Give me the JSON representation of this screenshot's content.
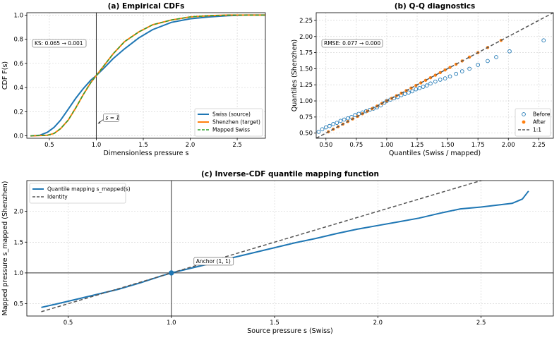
{
  "chart_data": [
    {
      "type": "line",
      "title": "(a) Empirical CDFs",
      "xlabel": "Dimensionless pressure s",
      "ylabel": "CDF F(s)",
      "xlim": [
        0.26,
        2.8
      ],
      "ylim": [
        -0.02,
        1.02
      ],
      "xticks": [
        "0.5",
        "1.0",
        "1.5",
        "2.0",
        "2.5"
      ],
      "yticks": [
        "0.0",
        "0.2",
        "0.4",
        "0.6",
        "0.8",
        "1.0"
      ],
      "grid": true,
      "legend_position": "lower-right",
      "series": [
        {
          "name": "Swiss (source)",
          "color": "#1f77b4",
          "style": "solid",
          "x": [
            0.3,
            0.4,
            0.48,
            0.55,
            0.62,
            0.7,
            0.78,
            0.86,
            0.94,
            1.0,
            1.08,
            1.18,
            1.3,
            1.45,
            1.6,
            1.8,
            2.0,
            2.2,
            2.4,
            2.6,
            2.8
          ],
          "y": [
            0.0,
            0.005,
            0.03,
            0.07,
            0.13,
            0.22,
            0.31,
            0.39,
            0.46,
            0.5,
            0.56,
            0.64,
            0.72,
            0.81,
            0.88,
            0.94,
            0.97,
            0.985,
            0.995,
            1.0,
            1.0
          ]
        },
        {
          "name": "Shenzhen (target)",
          "color": "#ff7f0e",
          "style": "solid",
          "x": [
            0.3,
            0.48,
            0.55,
            0.62,
            0.7,
            0.78,
            0.86,
            0.94,
            1.0,
            1.08,
            1.18,
            1.3,
            1.45,
            1.6,
            1.8,
            2.0,
            2.2,
            2.4,
            2.8
          ],
          "y": [
            0.0,
            0.005,
            0.02,
            0.06,
            0.13,
            0.23,
            0.34,
            0.44,
            0.5,
            0.58,
            0.68,
            0.78,
            0.86,
            0.92,
            0.96,
            0.985,
            0.995,
            1.0,
            1.0
          ]
        },
        {
          "name": "Mapped Swiss",
          "color": "#2ca02c",
          "style": "dashed",
          "x": [
            0.3,
            0.48,
            0.55,
            0.62,
            0.7,
            0.78,
            0.86,
            0.94,
            1.0,
            1.08,
            1.18,
            1.3,
            1.45,
            1.6,
            1.8,
            2.0,
            2.2,
            2.4,
            2.8
          ],
          "y": [
            0.0,
            0.005,
            0.02,
            0.06,
            0.13,
            0.23,
            0.34,
            0.44,
            0.5,
            0.58,
            0.68,
            0.78,
            0.86,
            0.92,
            0.96,
            0.985,
            0.995,
            1.0,
            1.0
          ]
        }
      ],
      "vline": 1.0,
      "annotations": [
        {
          "text": "KS: 0.065 → 0.001",
          "boxed": true
        },
        {
          "text": "s = 1",
          "x": 1.0,
          "y": 0.1,
          "arrow": true,
          "boxed": true
        }
      ]
    },
    {
      "type": "scatter",
      "title": "(b) Q-Q diagnostics",
      "xlabel": "Quantiles (Swiss / mapped)",
      "ylabel": "Quantiles (Shenzhen)",
      "xlim": [
        0.42,
        2.37
      ],
      "ylim": [
        0.42,
        2.37
      ],
      "xticks": [
        "0.50",
        "0.75",
        "1.00",
        "1.25",
        "1.50",
        "1.75",
        "2.00",
        "2.25"
      ],
      "yticks": [
        "0.50",
        "0.75",
        "1.00",
        "1.25",
        "1.50",
        "1.75",
        "2.00",
        "2.25"
      ],
      "grid": true,
      "legend_position": "lower-right",
      "series": [
        {
          "name": "Before",
          "color": "#1f77b4",
          "marker": "open-circle",
          "x": [
            0.44,
            0.47,
            0.5,
            0.53,
            0.56,
            0.59,
            0.62,
            0.65,
            0.68,
            0.71,
            0.74,
            0.77,
            0.8,
            0.83,
            0.86,
            0.89,
            0.92,
            0.95,
            0.98,
            1.0,
            1.03,
            1.06,
            1.09,
            1.12,
            1.15,
            1.18,
            1.21,
            1.24,
            1.27,
            1.3,
            1.33,
            1.36,
            1.4,
            1.44,
            1.48,
            1.52,
            1.57,
            1.62,
            1.68,
            1.75,
            1.83,
            1.9,
            2.01,
            2.29
          ],
          "y": [
            0.52,
            0.56,
            0.59,
            0.61,
            0.64,
            0.66,
            0.69,
            0.71,
            0.73,
            0.75,
            0.78,
            0.8,
            0.82,
            0.84,
            0.86,
            0.88,
            0.9,
            0.93,
            0.97,
            1.0,
            1.02,
            1.04,
            1.06,
            1.09,
            1.11,
            1.13,
            1.15,
            1.18,
            1.2,
            1.22,
            1.24,
            1.27,
            1.3,
            1.33,
            1.35,
            1.38,
            1.42,
            1.46,
            1.5,
            1.56,
            1.62,
            1.68,
            1.77,
            1.94
          ]
        },
        {
          "name": "After",
          "color": "#ff7f0e",
          "marker": "filled-circle",
          "x": [
            0.52,
            0.56,
            0.6,
            0.64,
            0.68,
            0.72,
            0.76,
            0.8,
            0.84,
            0.88,
            0.92,
            0.96,
            1.0,
            1.04,
            1.08,
            1.12,
            1.16,
            1.2,
            1.24,
            1.28,
            1.32,
            1.36,
            1.4,
            1.44,
            1.48,
            1.52,
            1.57,
            1.62,
            1.68,
            1.75,
            1.83,
            1.94
          ],
          "y": [
            0.52,
            0.56,
            0.6,
            0.64,
            0.68,
            0.72,
            0.76,
            0.8,
            0.84,
            0.88,
            0.92,
            0.96,
            1.0,
            1.04,
            1.08,
            1.12,
            1.16,
            1.2,
            1.24,
            1.28,
            1.32,
            1.36,
            1.4,
            1.44,
            1.48,
            1.52,
            1.57,
            1.62,
            1.68,
            1.75,
            1.83,
            1.94
          ]
        },
        {
          "name": "1:1",
          "color": "#555555",
          "style": "dashed",
          "x": [
            0.42,
            2.37
          ],
          "y": [
            0.42,
            2.37
          ]
        }
      ],
      "annotations": [
        {
          "text": "RMSE: 0.077 → 0.000",
          "boxed": true
        }
      ]
    },
    {
      "type": "line",
      "title": "(c) Inverse-CDF quantile mapping function",
      "xlabel": "Source pressure s (Swiss)",
      "ylabel": "Mapped pressure s_mapped (Shenzhen)",
      "xlim": [
        0.3,
        2.85
      ],
      "ylim": [
        0.3,
        2.5
      ],
      "xticks": [
        "0.5",
        "1.0",
        "1.5",
        "2.0",
        "2.5"
      ],
      "yticks": [
        "0.5",
        "1.0",
        "1.5",
        "2.0"
      ],
      "grid": true,
      "legend_position": "upper-left",
      "series": [
        {
          "name": "Quantile mapping  s_mapped(s)",
          "color": "#1f77b4",
          "style": "solid",
          "x": [
            0.37,
            0.45,
            0.55,
            0.65,
            0.75,
            0.85,
            0.95,
            1.0,
            1.1,
            1.2,
            1.3,
            1.4,
            1.5,
            1.6,
            1.7,
            1.8,
            1.9,
            2.0,
            2.1,
            2.2,
            2.3,
            2.4,
            2.5,
            2.6,
            2.65,
            2.7,
            2.73
          ],
          "y": [
            0.44,
            0.5,
            0.58,
            0.66,
            0.74,
            0.84,
            0.95,
            1.0,
            1.08,
            1.16,
            1.25,
            1.33,
            1.41,
            1.49,
            1.56,
            1.64,
            1.71,
            1.77,
            1.83,
            1.89,
            1.97,
            2.04,
            2.07,
            2.11,
            2.13,
            2.2,
            2.33
          ]
        },
        {
          "name": "Identity",
          "color": "#555555",
          "style": "dashed",
          "x": [
            0.37,
            2.73
          ],
          "y": [
            0.37,
            2.73
          ]
        }
      ],
      "reference_lines": {
        "vline": 1.0,
        "hline": 1.0
      },
      "annotations": [
        {
          "text": "Anchor (1, 1)",
          "x": 1.0,
          "y": 1.0,
          "boxed": true
        }
      ]
    }
  ]
}
